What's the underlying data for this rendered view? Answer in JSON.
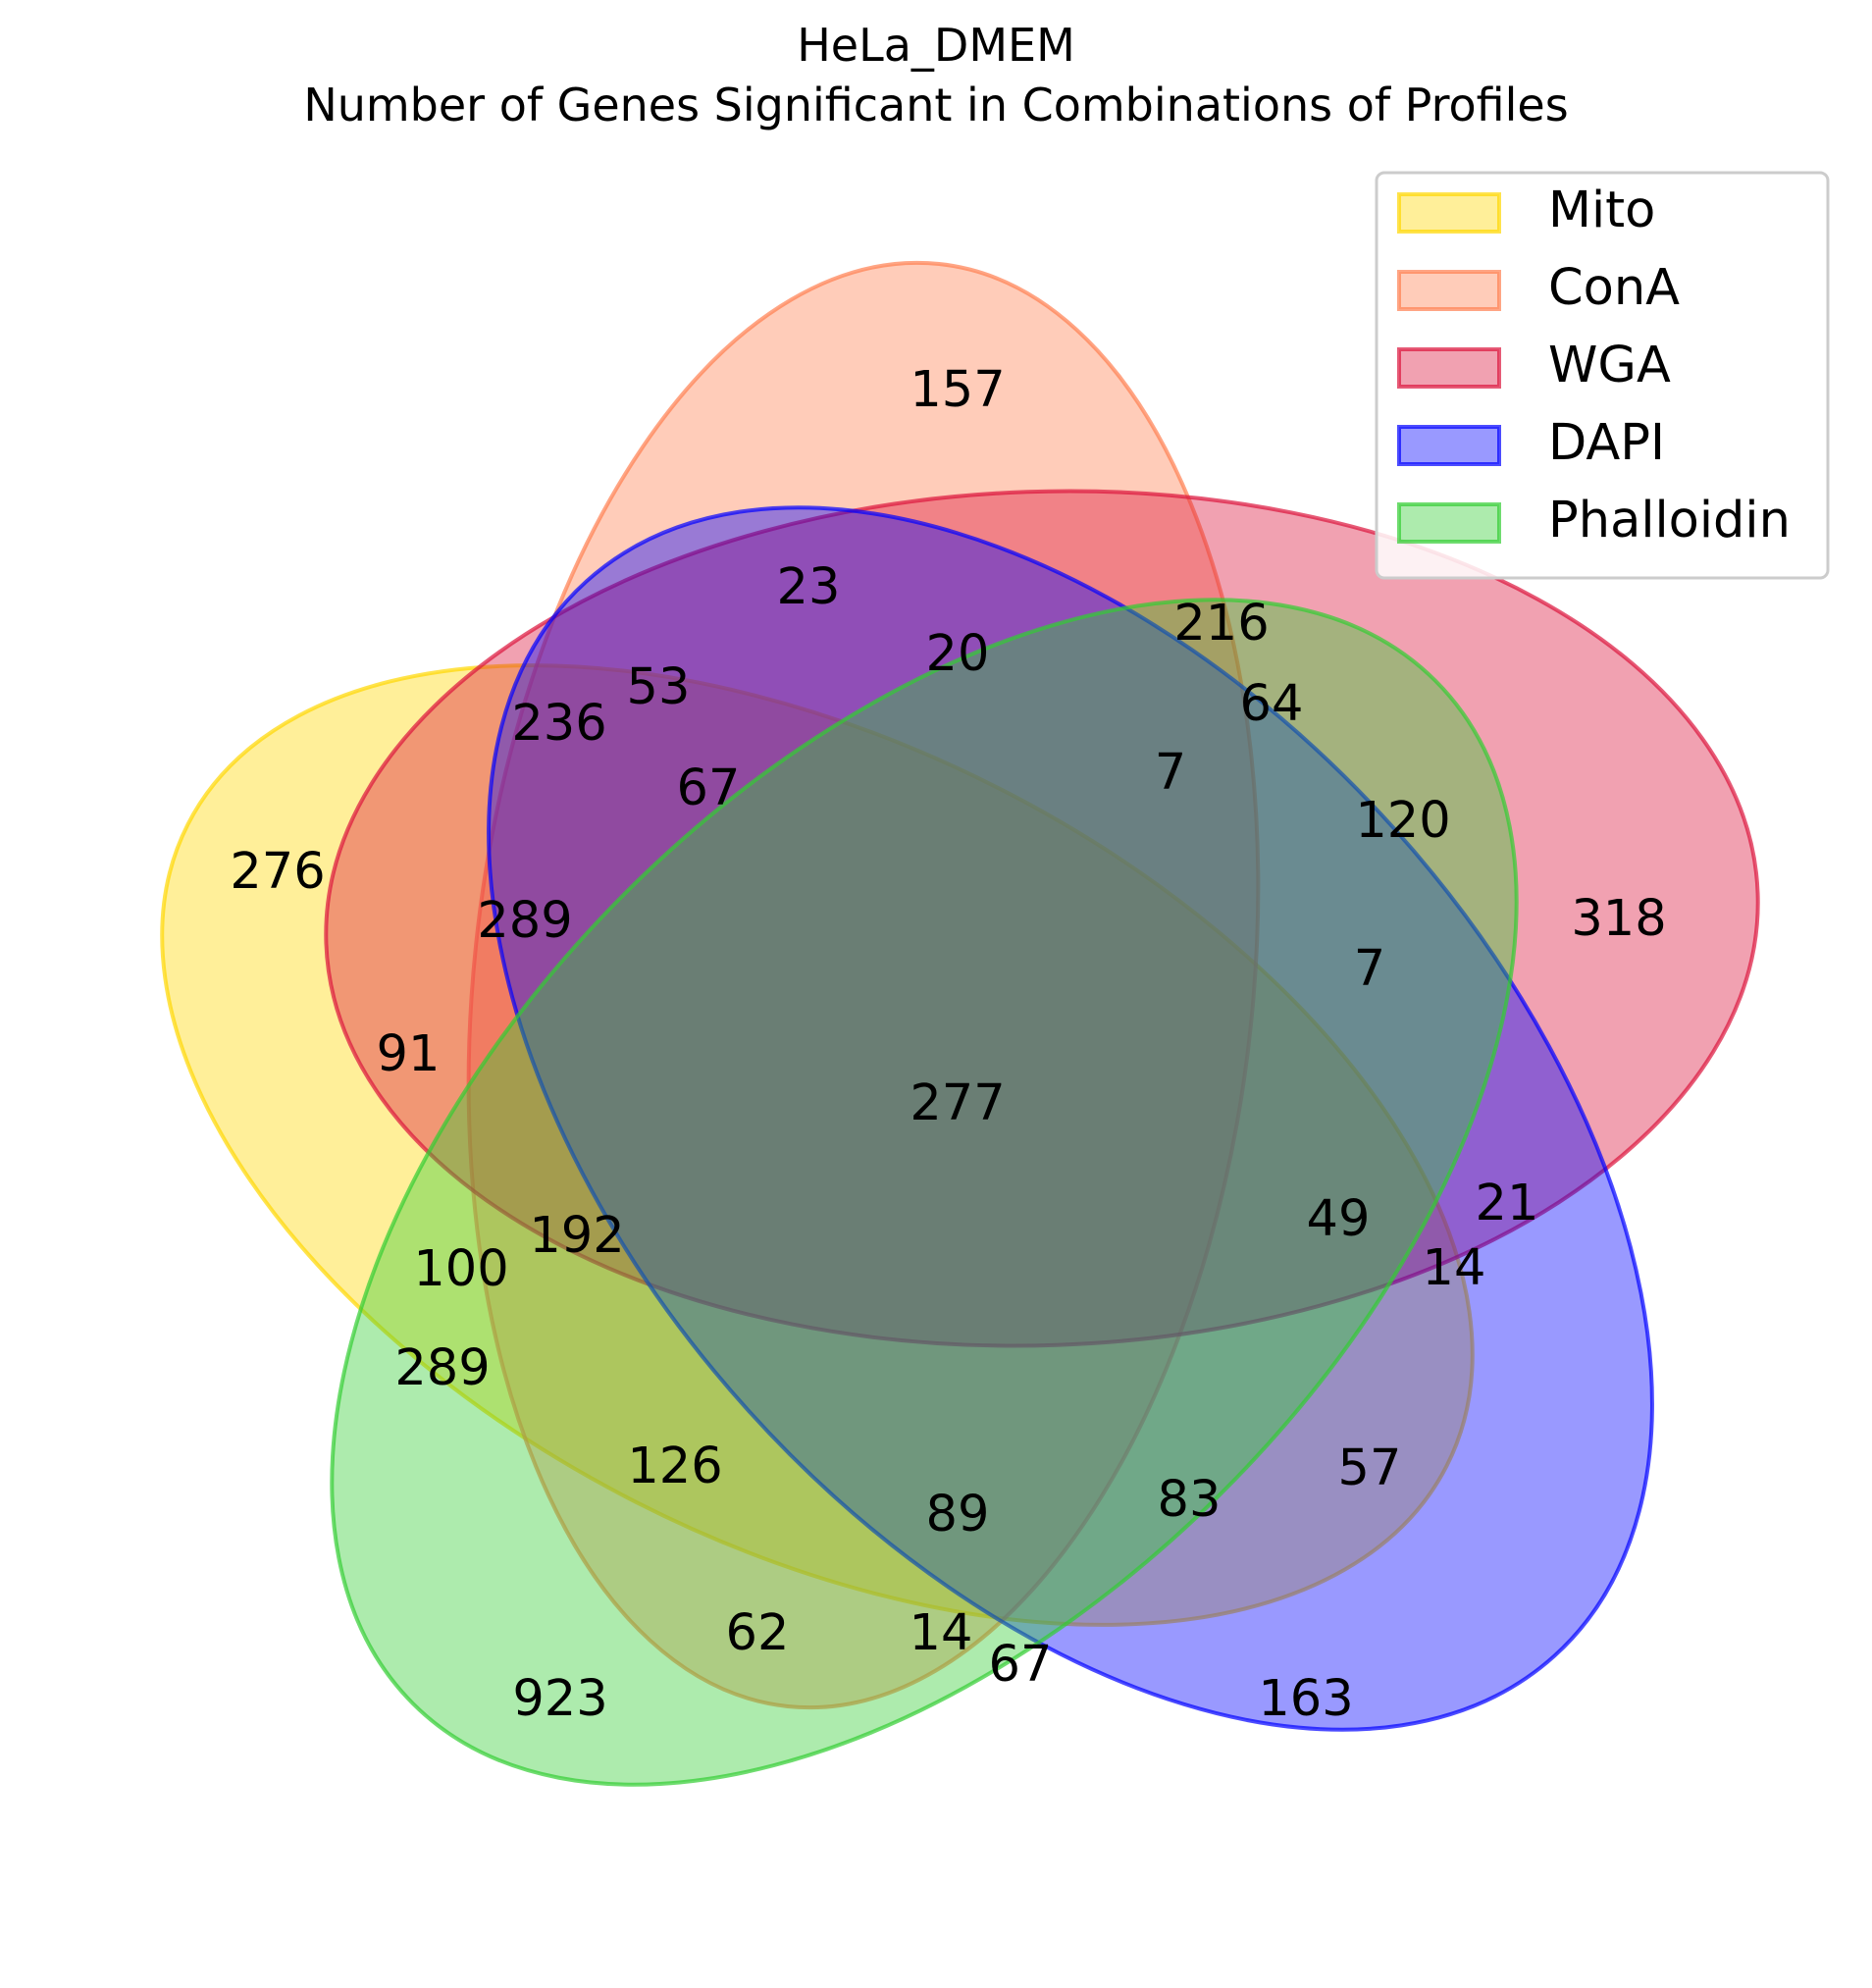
{
  "chart_data": {
    "type": "venn",
    "title_lines": [
      "HeLa_DMEM",
      "Number of Genes Significant in Combinations of Profiles"
    ],
    "sets": [
      {
        "name": "Mito",
        "color": "#ffd700"
      },
      {
        "name": "ConA",
        "color": "#ff7f50"
      },
      {
        "name": "WGA",
        "color": "#dc143c"
      },
      {
        "name": "DAPI",
        "color": "#0000ff"
      },
      {
        "name": "Phalloidin",
        "color": "#32cd32"
      }
    ],
    "legend_position": "top-right",
    "regions": [
      {
        "sets": [
          "Mito"
        ],
        "value": 276
      },
      {
        "sets": [
          "ConA"
        ],
        "value": 157
      },
      {
        "sets": [
          "WGA"
        ],
        "value": 318
      },
      {
        "sets": [
          "DAPI"
        ],
        "value": 163
      },
      {
        "sets": [
          "Phalloidin"
        ],
        "value": 923
      },
      {
        "sets": [
          "Mito",
          "ConA"
        ],
        "value": 236
      },
      {
        "sets": [
          "Mito",
          "WGA"
        ],
        "value": 91
      },
      {
        "sets": [
          "Mito",
          "Phalloidin"
        ],
        "value": 289
      },
      {
        "sets": [
          "ConA",
          "DAPI"
        ],
        "value": 23
      },
      {
        "sets": [
          "ConA",
          "WGA"
        ],
        "value": 216
      },
      {
        "sets": [
          "ConA",
          "Phalloidin"
        ],
        "value": 62
      },
      {
        "sets": [
          "WGA",
          "DAPI"
        ],
        "value": 21
      },
      {
        "sets": [
          "WGA",
          "Phalloidin"
        ],
        "value": 120
      },
      {
        "sets": [
          "DAPI",
          "Phalloidin"
        ],
        "value": 67
      },
      {
        "sets": [
          "Mito",
          "DAPI"
        ],
        "value": 57
      },
      {
        "sets": [
          "Mito",
          "ConA",
          "WGA"
        ],
        "value": 289
      },
      {
        "sets": [
          "ConA",
          "WGA",
          "DAPI"
        ],
        "value": 20
      },
      {
        "sets": [
          "ConA",
          "WGA",
          "Phalloidin"
        ],
        "value": 64
      },
      {
        "sets": [
          "Mito",
          "ConA",
          "DAPI"
        ],
        "value": 53
      },
      {
        "sets": [
          "Mito",
          "WGA",
          "Phalloidin"
        ],
        "value": 100
      },
      {
        "sets": [
          "Mito",
          "ConA",
          "Phalloidin"
        ],
        "value": 126
      },
      {
        "sets": [
          "ConA",
          "DAPI",
          "Phalloidin"
        ],
        "value": 14
      },
      {
        "sets": [
          "Mito",
          "WGA",
          "DAPI"
        ],
        "value": 14
      },
      {
        "sets": [
          "WGA",
          "DAPI",
          "Phalloidin"
        ],
        "value": 7
      },
      {
        "sets": [
          "Mito",
          "DAPI",
          "Phalloidin"
        ],
        "value": 83
      },
      {
        "sets": [
          "Mito",
          "ConA",
          "WGA",
          "DAPI"
        ],
        "value": 67
      },
      {
        "sets": [
          "Mito",
          "ConA",
          "WGA",
          "Phalloidin"
        ],
        "value": 192
      },
      {
        "sets": [
          "ConA",
          "WGA",
          "DAPI",
          "Phalloidin"
        ],
        "value": 7
      },
      {
        "sets": [
          "Mito",
          "WGA",
          "DAPI",
          "Phalloidin"
        ],
        "value": 49
      },
      {
        "sets": [
          "Mito",
          "ConA",
          "DAPI",
          "Phalloidin"
        ],
        "value": 89
      },
      {
        "sets": [
          "Mito",
          "ConA",
          "WGA",
          "DAPI",
          "Phalloidin"
        ],
        "value": 277
      }
    ]
  }
}
